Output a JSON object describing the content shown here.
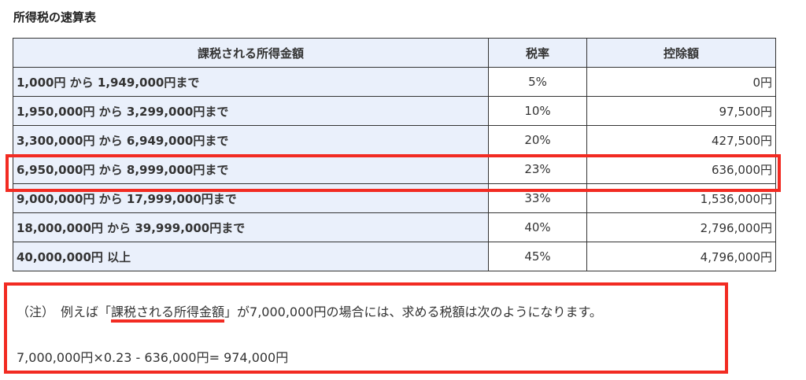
{
  "title": "所得税の速算表",
  "table": {
    "headers": [
      "課税される所得金額",
      "税率",
      "控除額"
    ],
    "rows": [
      [
        "1,000円 から 1,949,000円まで",
        "5%",
        "0円"
      ],
      [
        "1,950,000円 から 3,299,000円まで",
        "10%",
        "97,500円"
      ],
      [
        "3,300,000円 から 6,949,000円まで",
        "20%",
        "427,500円"
      ],
      [
        "6,950,000円 から 8,999,000円まで",
        "23%",
        "636,000円"
      ],
      [
        "9,000,000円 から 17,999,000円まで",
        "33%",
        "1,536,000円"
      ],
      [
        "18,000,000円 から 39,999,000円まで",
        "40%",
        "2,796,000円"
      ],
      [
        "40,000,000円 以上",
        "45%",
        "4,796,000円"
      ]
    ],
    "highlighted_row": 3
  },
  "note": {
    "prefix": "（注）　例えば「",
    "underlined": "課税される所得金額",
    "suffix": "」が7,000,000円の場合には、求める税額は次のようになります。",
    "formula": "7,000,000円×0.23 - 636,000円= 974,000円"
  },
  "colors": {
    "highlight": "#f22b22",
    "header_bg": "#eaf0fb"
  }
}
